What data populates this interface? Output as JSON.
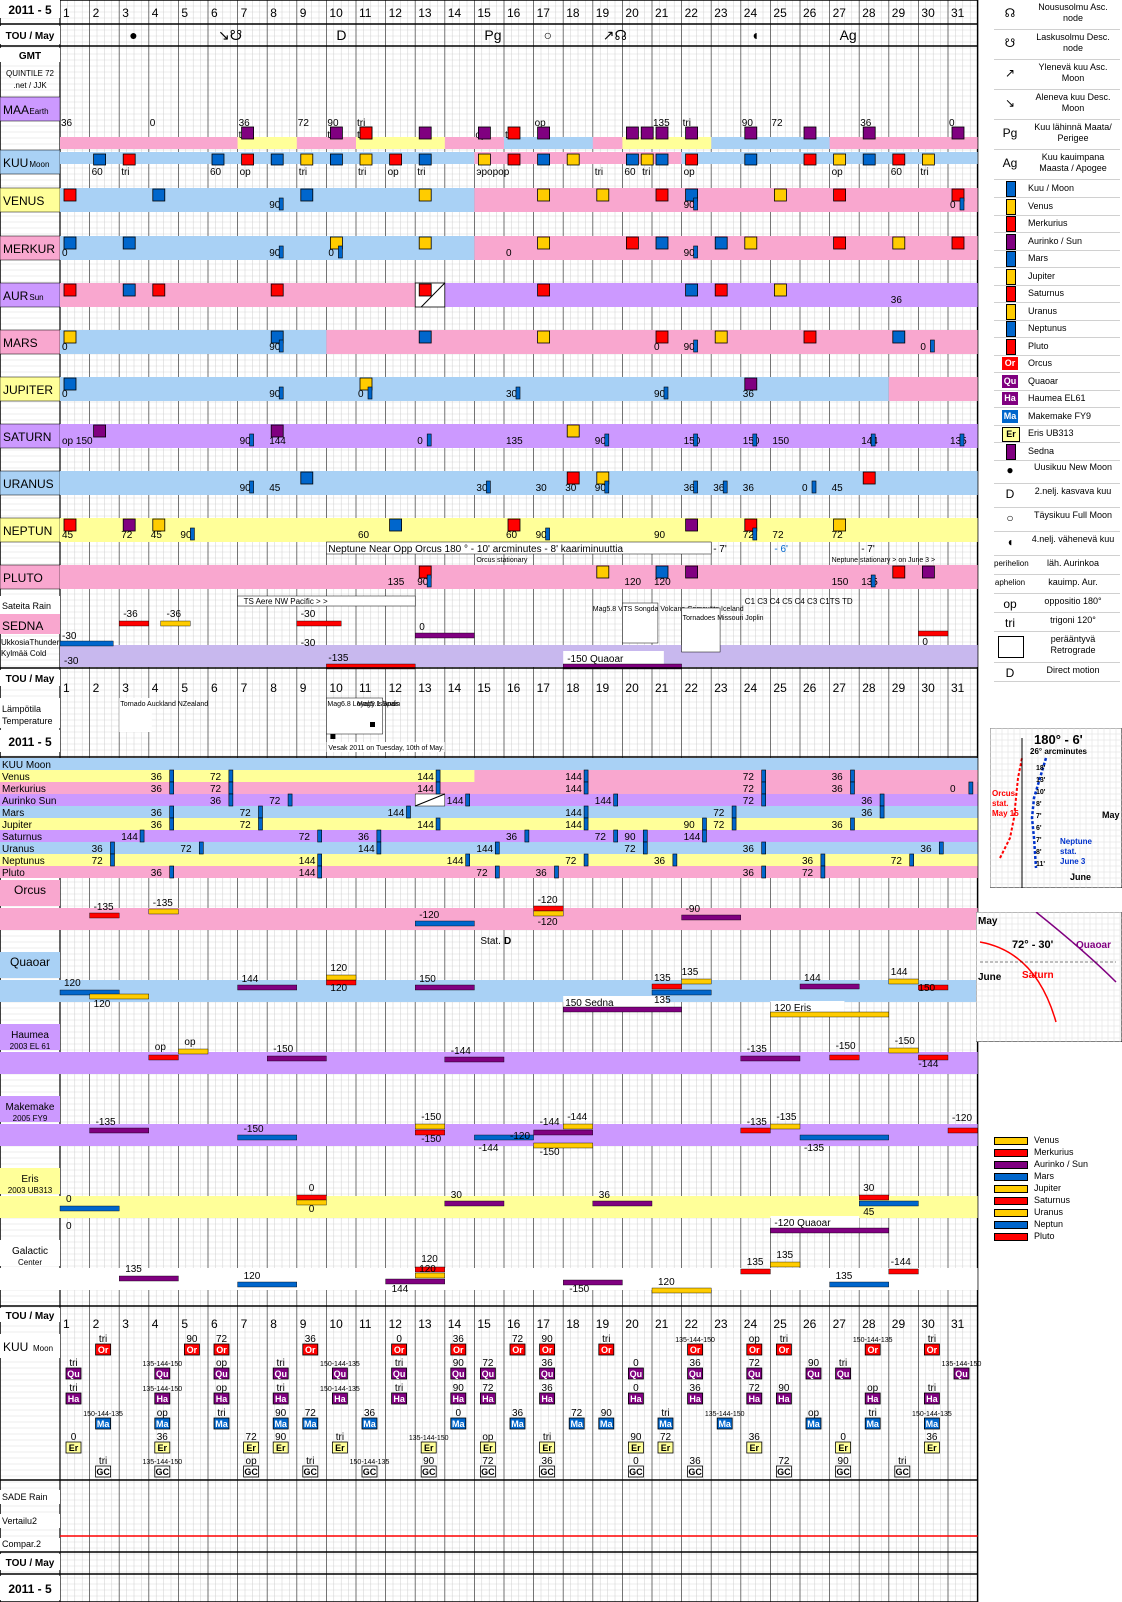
{
  "header": {
    "title": "2011 - 5",
    "tou": "TOU / May",
    "gmt": "GMT",
    "credit_line1": "QUINTILE 72",
    "credit_line2": ".net / JJK",
    "days": [
      "1",
      "2",
      "3",
      "4",
      "5",
      "6",
      "7",
      "8",
      "9",
      "10",
      "11",
      "12",
      "13",
      "14",
      "15",
      "16",
      "17",
      "18",
      "19",
      "20",
      "21",
      "22",
      "23",
      "24",
      "25",
      "26",
      "27",
      "28",
      "29",
      "30",
      "31"
    ]
  },
  "moon_events": [
    {
      "day": 3,
      "symbol": "●"
    },
    {
      "day": 6,
      "symbol": "↘☋"
    },
    {
      "day": 10,
      "symbol": "D"
    },
    {
      "day": 15,
      "symbol": "Pg"
    },
    {
      "day": 17,
      "symbol": "○"
    },
    {
      "day": 19,
      "symbol": "↗☊"
    },
    {
      "day": 24,
      "symbol": "◖"
    },
    {
      "day": 27,
      "symbol": "Ag"
    }
  ],
  "colors": {
    "blue_band": "#a9d1f5",
    "pink_band": "#f9a7cf",
    "yellow_band": "#ffff99",
    "purple_band": "#cc99ff",
    "lav_band": "#c8b8ee",
    "moon": "#0066cc",
    "venus": "#ffcc00",
    "mercury": "#ff0000",
    "sun": "#800080",
    "mars": "#0066cc",
    "jupiter": "#ffcc00",
    "saturn": "#ff0000",
    "uranus": "#ffcc00",
    "neptune": "#0066cc",
    "pluto": "#ff0000",
    "grid": "#cfcfcf",
    "red_line": "#ff0000"
  },
  "rows": [
    {
      "label": "MAA",
      "sub": "Earth",
      "bg": "#cc99ff"
    },
    {
      "label": "KUU",
      "sub": "Moon",
      "bg": "#a9d1f5"
    },
    {
      "label": "VENUS",
      "sub": "",
      "bg": "#ffff99"
    },
    {
      "label": "MERKUR",
      "sub": "",
      "bg": "#f9a7cf"
    },
    {
      "label": "AUR",
      "sub": "Sun",
      "bg": "#cc99ff"
    },
    {
      "label": "MARS",
      "sub": "",
      "bg": "#f9a7cf"
    },
    {
      "label": "JUPITER",
      "sub": "",
      "bg": "#ffff99"
    },
    {
      "label": "SATURN",
      "sub": "",
      "bg": "#cc99ff"
    },
    {
      "label": "URANUS",
      "sub": "",
      "bg": "#a9d1f5"
    },
    {
      "label": "NEPTUN",
      "sub": "",
      "bg": "#ffff99"
    },
    {
      "label": "PLUTO",
      "sub": "",
      "bg": "#f9a7cf"
    }
  ],
  "weather": {
    "rain": "Sateita Rain",
    "sedna": "SEDNA",
    "ukkonen": "UkkosiaThunder",
    "cold": "Kylmää Cold",
    "temp1": "Lämpötila",
    "temp2": "Temperature"
  },
  "notes": {
    "neptune_orcus": "Neptune Near Opp Orcus   180 ° - 10'  arcminutes      - 8'  kaariminuuttia",
    "n7a": "- 7'",
    "n6": "- 6'",
    "n7b": "- 7'",
    "orcus_stat": "Orcus stationary",
    "neptune_stat": "Neptune stationary > on June 3 >",
    "storms": "TS  Aere      NW Pacific      >           >",
    "vesak": "Vesak 2011   on Tuesday,  10th of May.",
    "quake1": "Mag6.8 Loyalty Islands",
    "quake2": "Mag5.1 Spain",
    "tornado_nz": "Tornado Auckland NZealand",
    "mag58": "Mag5.8 VTurkey",
    "volcano": "TS Songda Volcano Grimsvötn Iceland",
    "nwpac": "NW Pacific",
    "tornadoes": "Tornadoes Missouri Joplin",
    "quaoar": "-150   Quaoar",
    "c_labels": "C1       C3  C4  C5   C4        C3  C1TS    TD"
  },
  "aspect_rows": [
    {
      "label": "KUU Moon",
      "bg": "#a9d1f5"
    },
    {
      "label": "Venus",
      "bg": "#ffff99"
    },
    {
      "label": "Merkurius",
      "bg": "#f9a7cf"
    },
    {
      "label": "Aurinko Sun",
      "bg": "#cc99ff"
    },
    {
      "label": "Mars",
      "bg": "#a9d1f5"
    },
    {
      "label": "Jupiter",
      "bg": "#ffff99"
    },
    {
      "label": "Saturnus",
      "bg": "#cc99ff"
    },
    {
      "label": "Uranus",
      "bg": "#a9d1f5"
    },
    {
      "label": "Neptunus",
      "bg": "#ffff99"
    },
    {
      "label": "Pluto",
      "bg": "#f9a7cf"
    }
  ],
  "bodies": [
    {
      "label": "Orcus",
      "sub": "",
      "bg": "#f9a7cf",
      "note": "Stat.  D"
    },
    {
      "label": "Quaoar",
      "sub": "",
      "bg": "#a9d1f5",
      "note": "150   Sedna"
    },
    {
      "label": "Haumea",
      "sub": "2003 EL 61",
      "bg": "#cc99ff",
      "note": ""
    },
    {
      "label": "Makemake",
      "sub": "2005 FY9",
      "bg": "#cc99ff",
      "note": ""
    },
    {
      "label": "Eris",
      "sub": "2003 UB313",
      "bg": "#ffff99",
      "note": "-120  Quaoar"
    },
    {
      "label": "Galactic",
      "sub": "Center",
      "bg": "#ffffff",
      "note": ""
    }
  ],
  "bottom": {
    "tou": "TOU / May",
    "kuu": "KUU",
    "moon": "Moon",
    "sade": "SADE Rain",
    "vertailu": "Vertailu2",
    "compar": "Compar.2",
    "tou2": "TOU / May",
    "year": "2011 - 5",
    "badges": [
      "Or",
      "Qu",
      "Ha",
      "Ma",
      "Er",
      "GC"
    ]
  },
  "legend": [
    {
      "sym": "☊",
      "text": "Nousu­solmu Asc. node"
    },
    {
      "sym": "☋",
      "text": "Laskusolmu Desc. node"
    },
    {
      "sym": "↗",
      "text": "Yle­nevä kuu Asc. Moon"
    },
    {
      "sym": "↘",
      "text": "Aleneva kuu Desc. Moon"
    },
    {
      "sym": "Pg",
      "text": "Kuu lähinnä Maata/ Perigee"
    },
    {
      "sym": "Ag",
      "text": "Kuu kauimpa­na Maasta / Apogee"
    }
  ],
  "legend_planets": [
    {
      "name": "Kuu / Moon",
      "color": "#0066cc"
    },
    {
      "name": "Venus",
      "color": "#ffcc00"
    },
    {
      "name": "Merkurius",
      "color": "#ff0000"
    },
    {
      "name": "Aurinko / Sun",
      "color": "#800080"
    },
    {
      "name": "Mars",
      "color": "#0066cc"
    },
    {
      "name": "Jupiter",
      "color": "#ffcc00"
    },
    {
      "name": "Saturnus",
      "color": "#ff0000"
    },
    {
      "name": "Uranus",
      "color": "#ffcc00"
    },
    {
      "name": "Neptunus",
      "color": "#0066cc"
    },
    {
      "name": "Pluto",
      "color": "#ff0000"
    }
  ],
  "legend_badges": [
    {
      "b": "Or",
      "name": "Orcus",
      "color": "#ff0000"
    },
    {
      "b": "Qu",
      "name": "Quaoar",
      "color": "#800080"
    },
    {
      "b": "Ha",
      "name": "Haumea EL61",
      "color": "#800080"
    },
    {
      "b": "Ma",
      "name": "Makemake FY9",
      "color": "#0066cc"
    },
    {
      "b": "Er",
      "name": "Eris  UB313",
      "color": "#ffcc00"
    },
    {
      "b": "",
      "name": "Sedna",
      "color": "#800080"
    }
  ],
  "legend_bottom": [
    {
      "sym": "●",
      "text": "Uusikuu New Moon"
    },
    {
      "sym": "D",
      "text": "2.nelj.  kasvava kuu"
    },
    {
      "sym": "○",
      "text": "Täysikuu Full Moon"
    },
    {
      "sym": "◖",
      "text": "4.nelj. vähenevä kuu"
    },
    {
      "sym": "perihelion",
      "text": "läh. Aurinkoa"
    },
    {
      "sym": "aphelion",
      "text": "kauimp. Aur."
    },
    {
      "sym": "op",
      "text": "oppositio 180°"
    },
    {
      "sym": "tri",
      "text": "trigoni  120°"
    },
    {
      "sym": "",
      "text": "peräänty­vä Retrograde"
    },
    {
      "sym": "D",
      "text": "Direct motion"
    }
  ],
  "inset1": {
    "title": "180° - 6'",
    "sub": "26° arcminutes",
    "orcus": "Orcus stat. May 15",
    "neptune": "Neptune stat. June 3",
    "may": "May",
    "june": "June",
    "ticks": [
      "18'",
      "13'",
      "10'",
      "8'",
      "7'",
      "6'",
      "7'",
      "8'",
      "11'"
    ]
  },
  "inset2": {
    "may": "May",
    "june": "June",
    "angle": "72° - 30'",
    "quaoar": "Quaoar",
    "saturn": "Saturn"
  },
  "bar_legend": [
    {
      "name": "Venus",
      "color": "#ffcc00"
    },
    {
      "name": "Merkurius",
      "color": "#ff0000"
    },
    {
      "name": "Aurinko / Sun",
      "color": "#800080"
    },
    {
      "name": "Mars",
      "color": "#0066cc"
    },
    {
      "name": "Jupiter",
      "color": "#ffcc00"
    },
    {
      "name": "Saturnus",
      "color": "#ff0000"
    },
    {
      "name": "Uranus",
      "color": "#ffcc00"
    },
    {
      "name": "Neptun",
      "color": "#0066cc"
    },
    {
      "name": "Pluto",
      "color": "#ff0000"
    }
  ]
}
